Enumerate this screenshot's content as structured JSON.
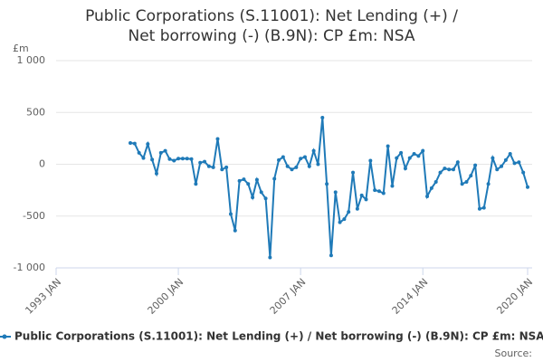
{
  "chart_data": {
    "type": "line",
    "title": "Public Corporations (S.11001): Net Lending (+) / Net borrowing (-) (B.9N): CP £m: NSA",
    "y_unit": "£m",
    "source": "Source:",
    "x": [
      "1997 APR",
      "1997 JUL",
      "1997 OCT",
      "1998 JAN",
      "1998 APR",
      "1998 JUL",
      "1998 OCT",
      "1999 JAN",
      "1999 APR",
      "1999 JUL",
      "1999 OCT",
      "2000 JAN",
      "2000 APR",
      "2000 JUL",
      "2000 OCT",
      "2001 JAN",
      "2001 APR",
      "2001 JUL",
      "2001 OCT",
      "2002 JAN",
      "2002 APR",
      "2002 JUL",
      "2002 OCT",
      "2003 JAN",
      "2003 APR",
      "2003 JUL",
      "2003 OCT",
      "2004 JAN",
      "2004 APR",
      "2004 JUL",
      "2004 OCT",
      "2005 JAN",
      "2005 APR",
      "2005 JUL",
      "2005 OCT",
      "2006 JAN",
      "2006 APR",
      "2006 JUL",
      "2006 OCT",
      "2007 JAN",
      "2007 APR",
      "2007 JUL",
      "2007 OCT",
      "2008 JAN",
      "2008 APR",
      "2008 JUL",
      "2008 OCT",
      "2009 JAN",
      "2009 APR",
      "2009 JUL",
      "2009 OCT",
      "2010 JAN",
      "2010 APR",
      "2010 JUL",
      "2010 OCT",
      "2011 JAN",
      "2011 APR",
      "2011 JUL",
      "2011 OCT",
      "2012 JAN",
      "2012 APR",
      "2012 JUL",
      "2012 OCT",
      "2013 JAN",
      "2013 APR",
      "2013 JUL",
      "2013 OCT",
      "2014 JAN",
      "2014 APR",
      "2014 JUL",
      "2014 OCT",
      "2015 JAN",
      "2015 APR",
      "2015 JUL",
      "2015 OCT",
      "2016 JAN",
      "2016 APR",
      "2016 JUL",
      "2016 OCT",
      "2017 JAN",
      "2017 APR",
      "2017 JUL",
      "2017 OCT",
      "2018 JAN",
      "2018 APR",
      "2018 JUL",
      "2018 OCT",
      "2019 JAN",
      "2019 APR",
      "2019 JUL",
      "2019 OCT",
      "2020 JAN"
    ],
    "series": [
      {
        "name": "Public Corporations (S.11001): Net Lending (+) / Net borrowing (-) (B.9N): CP £m: NSA",
        "color": "#1f7ab8",
        "values": [
          205,
          200,
          110,
          60,
          195,
          45,
          -90,
          110,
          130,
          50,
          35,
          55,
          55,
          55,
          50,
          -190,
          15,
          25,
          -20,
          -30,
          245,
          -50,
          -30,
          -480,
          -640,
          -160,
          -145,
          -190,
          -320,
          -150,
          -270,
          -330,
          -900,
          -140,
          40,
          70,
          -20,
          -50,
          -30,
          55,
          70,
          -20,
          130,
          0,
          450,
          -190,
          -880,
          -270,
          -560,
          -530,
          -460,
          -80,
          -430,
          -300,
          -340,
          35,
          -250,
          -260,
          -280,
          175,
          -210,
          60,
          110,
          -40,
          60,
          100,
          80,
          130,
          -310,
          -230,
          -170,
          -80,
          -40,
          -50,
          -50,
          20,
          -190,
          -170,
          -110,
          -10,
          -430,
          -420,
          -190,
          60,
          -50,
          -20,
          40,
          100,
          10,
          20,
          -80,
          -220
        ]
      }
    ],
    "xlim": [
      "1993 JAN",
      "2020 JAN"
    ],
    "xticks": [
      "1993 JAN",
      "2000 JAN",
      "2007 JAN",
      "2014 JAN",
      "2020 JAN"
    ],
    "ylim": [
      -1000,
      1000
    ],
    "yticks": [
      {
        "value": -1000,
        "label": "-1 000"
      },
      -500,
      0,
      500,
      {
        "value": 1000,
        "label": "1 000"
      }
    ],
    "grid": true
  }
}
